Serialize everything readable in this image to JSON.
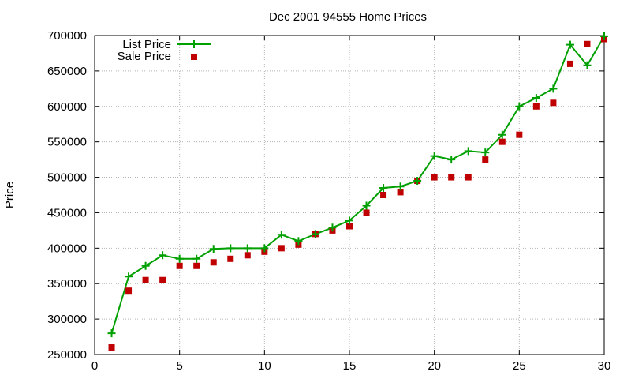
{
  "chart_data": {
    "type": "line",
    "title": "Dec 2001 94555 Home Prices",
    "xlabel": "",
    "ylabel": "Price",
    "xlim": [
      0,
      30
    ],
    "ylim": [
      250000,
      700000
    ],
    "x_ticks": [
      0,
      5,
      10,
      15,
      20,
      25,
      30
    ],
    "y_ticks": [
      250000,
      300000,
      350000,
      400000,
      450000,
      500000,
      550000,
      600000,
      650000,
      700000
    ],
    "grid": true,
    "legend_position": "top-left",
    "x": [
      1,
      2,
      3,
      4,
      5,
      6,
      7,
      8,
      9,
      10,
      11,
      12,
      13,
      14,
      15,
      16,
      17,
      18,
      19,
      20,
      21,
      22,
      23,
      24,
      25,
      26,
      27,
      28,
      29,
      30
    ],
    "series": [
      {
        "name": "List Price",
        "style": "line-with-plus-markers",
        "color": "#00a000",
        "values": [
          280000,
          360000,
          375000,
          390000,
          385000,
          385000,
          399000,
          400000,
          400000,
          400000,
          419000,
          410000,
          420000,
          429000,
          439000,
          460000,
          485000,
          487000,
          495000,
          530000,
          525000,
          537000,
          535000,
          560000,
          600000,
          612000,
          625000,
          687000,
          658000,
          699000
        ]
      },
      {
        "name": "Sale Price",
        "style": "square-markers",
        "color": "#c00000",
        "values": [
          260000,
          340000,
          355000,
          355000,
          375000,
          375000,
          380000,
          385000,
          390000,
          395000,
          400000,
          405000,
          420000,
          425000,
          431000,
          450000,
          475000,
          479000,
          495000,
          500000,
          500000,
          500000,
          525000,
          550000,
          560000,
          600000,
          605000,
          660000,
          688000,
          695000
        ]
      }
    ]
  }
}
